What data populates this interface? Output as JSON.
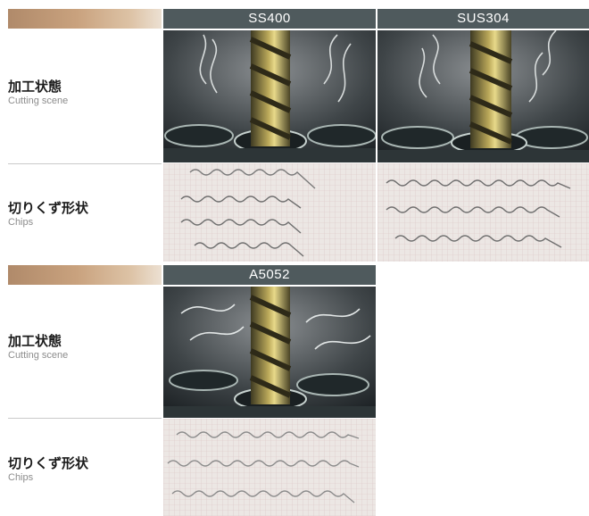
{
  "rows": {
    "cutting_scene": {
      "jp": "加工状態",
      "en": "Cutting scene"
    },
    "chips": {
      "jp": "切りくず形状",
      "en": "Chips"
    }
  },
  "materials": {
    "ss400": "SS400",
    "sus304": "SUS304",
    "a5052": "A5052"
  },
  "colors": {
    "header_bg": "#4f5a5d",
    "gradient_start": "#b08a6a",
    "gradient_end": "#ece0d2",
    "chip_paper": "#ece7e4",
    "chip_grid": "#d9c4c4"
  }
}
